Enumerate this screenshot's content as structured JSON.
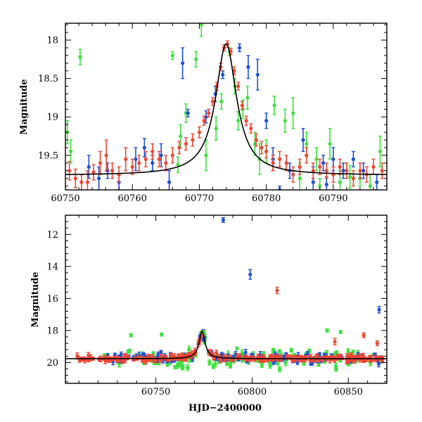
{
  "chart_data": [
    {
      "type": "scatter",
      "panel": "top",
      "title": "",
      "xlabel": "",
      "ylabel": "Magnitude",
      "xlim": [
        60750,
        60798
      ],
      "ylim": [
        19.95,
        17.78
      ],
      "y_inverted": true,
      "xticks": [
        "60750",
        "60760",
        "60770",
        "60780",
        "60790"
      ],
      "yticks": [
        "18",
        "18.5",
        "19",
        "19.5"
      ],
      "colors": {
        "green": "#3fe03f",
        "blue": "#1f4fd6",
        "red": "#ef4632",
        "model": "#000000"
      },
      "model_curve": {
        "peak_x": 60774.0,
        "peak_y": 18.05,
        "baseline_y": 19.76,
        "width": 1.9
      },
      "series": [
        {
          "color": "green",
          "points": [
            [
              60750.3,
              19.2,
              0.15
            ],
            [
              60750.8,
              19.45,
              0.15
            ],
            [
              60752.2,
              18.22,
              0.1
            ],
            [
              60766.0,
              18.2,
              0.05
            ],
            [
              60767.2,
              19.25,
              0.15
            ],
            [
              60768.0,
              18.95,
              0.12
            ],
            [
              60769.5,
              18.25,
              0.1
            ],
            [
              60770.3,
              17.8,
              0.15
            ],
            [
              60771.0,
              19.5,
              0.2
            ],
            [
              60772.5,
              19.15,
              0.15
            ],
            [
              60774.5,
              18.15,
              0.05
            ],
            [
              60775.3,
              18.6,
              0.1
            ],
            [
              60775.8,
              19.05,
              0.12
            ],
            [
              60776.5,
              18.9,
              0.12
            ],
            [
              60777.2,
              18.75,
              0.15
            ],
            [
              60778.3,
              19.35,
              0.15
            ],
            [
              60779.0,
              19.55,
              0.2
            ],
            [
              60780.0,
              19.45,
              0.15
            ],
            [
              60781.2,
              18.85,
              0.12
            ],
            [
              60782.8,
              19.05,
              0.15
            ],
            [
              60784.0,
              18.95,
              0.2
            ],
            [
              60785.0,
              19.8,
              0.2
            ],
            [
              60786.0,
              19.35,
              0.15
            ],
            [
              60787.5,
              19.55,
              0.15
            ],
            [
              60789.5,
              19.35,
              0.2
            ],
            [
              60791.0,
              19.85,
              0.15
            ],
            [
              60792.5,
              19.78,
              0.15
            ],
            [
              60794.0,
              19.8,
              0.1
            ],
            [
              60795.5,
              19.9,
              0.15
            ],
            [
              60797.0,
              19.45,
              0.2
            ],
            [
              60766.8,
              19.62,
              0.1
            ],
            [
              60773.3,
              18.8,
              0.1
            ],
            [
              60788.0,
              19.9,
              0.1
            ]
          ]
        },
        {
          "color": "blue",
          "points": [
            [
              60753.5,
              19.65,
              0.15
            ],
            [
              60755.0,
              19.8,
              0.15
            ],
            [
              60756.3,
              19.7,
              0.1
            ],
            [
              60758.0,
              19.85,
              0.1
            ],
            [
              60760.5,
              19.55,
              0.15
            ],
            [
              60761.8,
              19.4,
              0.12
            ],
            [
              60763.0,
              19.6,
              0.1
            ],
            [
              60764.3,
              19.5,
              0.15
            ],
            [
              60765.5,
              19.85,
              0.15
            ],
            [
              60767.5,
              18.3,
              0.2
            ],
            [
              60768.3,
              18.95,
              0.05
            ],
            [
              60771.0,
              19.0,
              0.08
            ],
            [
              60772.4,
              18.7,
              0.1
            ],
            [
              60773.5,
              18.45,
              0.05
            ],
            [
              60776.0,
              18.1,
              0.05
            ],
            [
              60777.3,
              18.35,
              0.15
            ],
            [
              60778.7,
              18.45,
              0.2
            ],
            [
              60780.0,
              19.05,
              0.1
            ],
            [
              60781.0,
              19.55,
              0.15
            ],
            [
              60782.0,
              19.95,
              0.05
            ],
            [
              60783.5,
              19.7,
              0.1
            ],
            [
              60785.5,
              19.3,
              0.15
            ],
            [
              60787.0,
              19.85,
              0.2
            ],
            [
              60788.5,
              19.6,
              0.1
            ],
            [
              60790.0,
              19.55,
              0.15
            ],
            [
              60791.5,
              19.7,
              0.1
            ],
            [
              60793.0,
              19.55,
              0.1
            ],
            [
              60794.5,
              19.7,
              0.1
            ],
            [
              60796.5,
              19.85,
              0.1
            ],
            [
              60789.0,
              19.88,
              0.1
            ]
          ]
        },
        {
          "color": "red",
          "points": [
            [
              60750.6,
              19.7,
              0.12
            ],
            [
              60751.5,
              19.8,
              0.12
            ],
            [
              60752.4,
              19.85,
              0.1
            ],
            [
              60753.3,
              19.85,
              0.15
            ],
            [
              60754.2,
              19.72,
              0.1
            ],
            [
              60755.2,
              19.6,
              0.15
            ],
            [
              60756.1,
              19.5,
              0.2
            ],
            [
              60757.0,
              19.7,
              0.1
            ],
            [
              60758.0,
              19.75,
              0.1
            ],
            [
              60759.0,
              19.55,
              0.15
            ],
            [
              60760.0,
              19.65,
              0.1
            ],
            [
              60761.0,
              19.6,
              0.1
            ],
            [
              60762.0,
              19.55,
              0.1
            ],
            [
              60763.0,
              19.45,
              0.1
            ],
            [
              60764.0,
              19.55,
              0.1
            ],
            [
              60765.0,
              19.6,
              0.1
            ],
            [
              60766.0,
              19.5,
              0.1
            ],
            [
              60767.0,
              19.4,
              0.08
            ],
            [
              60768.0,
              19.35,
              0.08
            ],
            [
              60769.0,
              19.3,
              0.08
            ],
            [
              60770.0,
              19.2,
              0.07
            ],
            [
              60770.7,
              19.05,
              0.06
            ],
            [
              60771.4,
              18.95,
              0.05
            ],
            [
              60772.0,
              18.8,
              0.05
            ],
            [
              60772.6,
              18.6,
              0.05
            ],
            [
              60773.2,
              18.35,
              0.05
            ],
            [
              60773.7,
              18.1,
              0.04
            ],
            [
              60774.2,
              18.05,
              0.04
            ],
            [
              60774.7,
              18.15,
              0.04
            ],
            [
              60775.2,
              18.4,
              0.05
            ],
            [
              60775.8,
              18.6,
              0.05
            ],
            [
              60776.4,
              18.85,
              0.05
            ],
            [
              60777.0,
              19.05,
              0.06
            ],
            [
              60777.7,
              19.15,
              0.06
            ],
            [
              60778.5,
              19.3,
              0.08
            ],
            [
              60779.3,
              19.4,
              0.08
            ],
            [
              60780.0,
              19.45,
              0.08
            ],
            [
              60781.0,
              19.6,
              0.1
            ],
            [
              60782.0,
              19.55,
              0.1
            ],
            [
              60783.0,
              19.6,
              0.1
            ],
            [
              60784.0,
              19.75,
              0.1
            ],
            [
              60785.0,
              19.65,
              0.1
            ],
            [
              60786.0,
              19.5,
              0.1
            ],
            [
              60787.0,
              19.7,
              0.1
            ],
            [
              60788.0,
              19.65,
              0.1
            ],
            [
              60789.0,
              19.7,
              0.1
            ],
            [
              60790.0,
              19.75,
              0.1
            ],
            [
              60791.0,
              19.65,
              0.1
            ],
            [
              60792.0,
              19.7,
              0.1
            ],
            [
              60793.0,
              19.8,
              0.1
            ],
            [
              60794.0,
              19.7,
              0.1
            ],
            [
              60795.0,
              19.75,
              0.1
            ],
            [
              60796.0,
              19.65,
              0.1
            ],
            [
              60797.3,
              19.7,
              0.1
            ]
          ]
        }
      ]
    },
    {
      "type": "scatter",
      "panel": "bottom",
      "title": "",
      "xlabel": "HJD−2400000",
      "ylabel": "Magnitude",
      "xlim": [
        60703,
        60870
      ],
      "ylim": [
        21.3,
        10.8
      ],
      "y_inverted": true,
      "xticks": [
        "60750",
        "60800",
        "60850"
      ],
      "yticks": [
        "12",
        "14",
        "16",
        "18",
        "20"
      ],
      "colors": {
        "green": "#3fe03f",
        "blue": "#1f4fd6",
        "red": "#ef4632",
        "model": "#000000"
      },
      "model_curve": {
        "peak_x": 60774.0,
        "peak_y": 18.05,
        "baseline_y": 19.76,
        "width": 1.9
      },
      "outliers": [
        {
          "color": "blue",
          "x": 60785,
          "y": 11.1,
          "err": 0.15
        },
        {
          "color": "blue",
          "x": 60799,
          "y": 14.5,
          "err": 0.3
        },
        {
          "color": "red",
          "x": 60813,
          "y": 15.5,
          "err": 0.2
        },
        {
          "color": "blue",
          "x": 60866,
          "y": 16.7,
          "err": 0.2
        },
        {
          "color": "green",
          "x": 60775,
          "y": 18.1,
          "err": 0.1
        },
        {
          "color": "green",
          "x": 60737,
          "y": 18.3,
          "err": 0.1
        },
        {
          "color": "green",
          "x": 60753,
          "y": 18.25,
          "err": 0.1
        },
        {
          "color": "green",
          "x": 60846,
          "y": 18.1,
          "err": 0.1
        },
        {
          "color": "green",
          "x": 60839,
          "y": 18.0,
          "err": 0.1
        },
        {
          "color": "red",
          "x": 60858,
          "y": 18.3,
          "err": 0.15
        },
        {
          "color": "red",
          "x": 60843,
          "y": 18.7,
          "err": 0.2
        },
        {
          "color": "red",
          "x": 60865,
          "y": 18.8,
          "err": 0.15
        }
      ],
      "scatter_sigma": {
        "green": 0.55,
        "blue": 0.3,
        "red": 0.15
      },
      "data_range": [
        60708,
        60868
      ]
    }
  ]
}
